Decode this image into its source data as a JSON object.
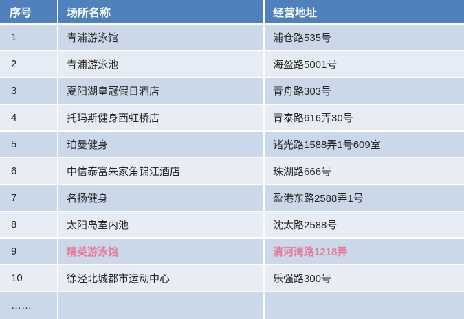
{
  "table": {
    "columns": [
      {
        "label": "序号"
      },
      {
        "label": "场所名称"
      },
      {
        "label": "经营地址"
      }
    ],
    "rows": [
      {
        "no": "1",
        "name": "青浦游泳馆",
        "address": "浦仓路535号",
        "highlight": false
      },
      {
        "no": "2",
        "name": "青浦游泳池",
        "address": "海盈路5001号",
        "highlight": false
      },
      {
        "no": "3",
        "name": "夏阳湖皇冠假日酒店",
        "address": "青舟路303号",
        "highlight": false
      },
      {
        "no": "4",
        "name": "托玛斯健身西虹桥店",
        "address": "青泰路616弄30号",
        "highlight": false
      },
      {
        "no": "5",
        "name": "珀曼健身",
        "address": "诸光路1588弄1号609室",
        "highlight": false
      },
      {
        "no": "6",
        "name": "中信泰富朱家角锦江酒店",
        "address": "珠湖路666号",
        "highlight": false
      },
      {
        "no": "7",
        "name": "名扬健身",
        "address": "盈港东路2588弄1号",
        "highlight": false
      },
      {
        "no": "8",
        "name": "太阳岛室内池",
        "address": "沈太路2588号",
        "highlight": false
      },
      {
        "no": "9",
        "name": "精英游泳馆",
        "address": "清河湾路1218弄",
        "highlight": true
      },
      {
        "no": "10",
        "name": "徐泾北城都市运动中心",
        "address": "乐强路300号",
        "highlight": false
      },
      {
        "no": "……",
        "name": "",
        "address": "",
        "highlight": false
      }
    ],
    "colors": {
      "header_bg": "#4F81BD",
      "header_text": "#FFFFFF",
      "row_odd": "#CBD8EA",
      "row_even": "#E7ECF5",
      "body_text": "#262626",
      "highlight_text": "#E8799A"
    }
  }
}
